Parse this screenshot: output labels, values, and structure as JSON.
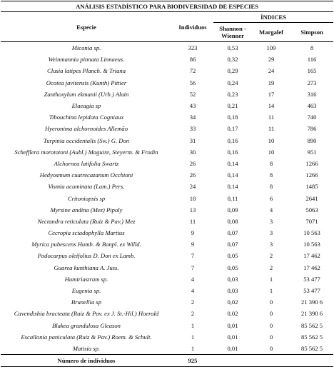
{
  "table": {
    "title": "ANÁLISIS ESTADÍSTICO PARA BIODIVERSIDAD DE ESPECIES",
    "group_header": "ÍNDICES",
    "headers": [
      "Especie",
      "Individuos",
      "Shannon - Wienner",
      "Margalef",
      "Simpson"
    ],
    "rows": [
      [
        "Miconia sp.",
        "323",
        "0,53",
        "109",
        "8"
      ],
      [
        "Weinmannia pinnata Linnaeus.",
        "86",
        "0,32",
        "29",
        "116"
      ],
      [
        "Clusia latipes Planch. & Triana",
        "72",
        "0,29",
        "24",
        "165"
      ],
      [
        "Ocotea javitensis (Kunth) Pittier",
        "56",
        "0,24",
        "19",
        "273"
      ],
      [
        "Zanthoxylum ekmanii (Urb.) Alain",
        "52",
        "0,23",
        "17",
        "316"
      ],
      [
        "Elaeagia sp",
        "43",
        "0,21",
        "14",
        "463"
      ],
      [
        "Tibouchina lepidota Cogniaux",
        "34",
        "0,18",
        "11",
        "740"
      ],
      [
        "Hyeronima alchornoides Allemão",
        "33",
        "0,17",
        "11",
        "786"
      ],
      [
        "Turpinia occidentalis (Sw.) G. Don",
        "31",
        "0,16",
        "10",
        "890"
      ],
      [
        "Schefflera morototoni (Aubl.) Maguire, Steyerm. & Frodin",
        "30",
        "0,16",
        "10",
        "951"
      ],
      [
        "Alchornea latifolia Swartz",
        "26",
        "0,14",
        "8",
        "1266"
      ],
      [
        "Hedyosmum cuatrecazanum Occhioni",
        "26",
        "0,14",
        "8",
        "1266"
      ],
      [
        "Vismia acuminata (Lam.) Pers.",
        "24",
        "0,14",
        "8",
        "1485"
      ],
      [
        "Critoniopsis sp",
        "18",
        "0,11",
        "6",
        "2641"
      ],
      [
        "Myrsine andina (Mez) Pipoly",
        "13",
        "0,09",
        "4",
        "5063"
      ],
      [
        "Nectandra reticulata (Ruiz & Pav.) Mez",
        "11",
        "0,08",
        "3",
        "7071"
      ],
      [
        "Cecropia sciadophylla Martius",
        "9",
        "0,07",
        "3",
        "10 563"
      ],
      [
        "Myrica pubescens Humb. & Bonpl. ex Willd.",
        "9",
        "0,07",
        "3",
        "10 563"
      ],
      [
        "Podocarpus oleifolius D. Don ex Lamb.",
        "7",
        "0,05",
        "2",
        "17 462"
      ],
      [
        "Guarea kunthiana A. Juss.",
        "7",
        "0,05",
        "2",
        "17 462"
      ],
      [
        "Humiriastrum sp.",
        "4",
        "0,03",
        "1",
        "53 477"
      ],
      [
        "Eugenia sp.",
        "4",
        "0,03",
        "1",
        "53 477"
      ],
      [
        "Brunellia sp",
        "2",
        "0,02",
        "0",
        "21 390 6"
      ],
      [
        "Cavendishia bracteata (Ruiz & Pav. ex J. St.-Hil.) Hoerold",
        "2",
        "0,02",
        "0",
        "21 390 6"
      ],
      [
        "Blakea grandulosa Gleason",
        "1",
        "0,01",
        "0",
        "85 562 5"
      ],
      [
        "Escallonia paniculata (Ruiz & Pav.) Roem. & Schult.",
        "1",
        "0,01",
        "0",
        "85 562 5"
      ],
      [
        "Matisia sp.",
        "1",
        "0,01",
        "0",
        "85 562 5"
      ]
    ],
    "footer": [
      "Número de individuos",
      "925"
    ]
  }
}
